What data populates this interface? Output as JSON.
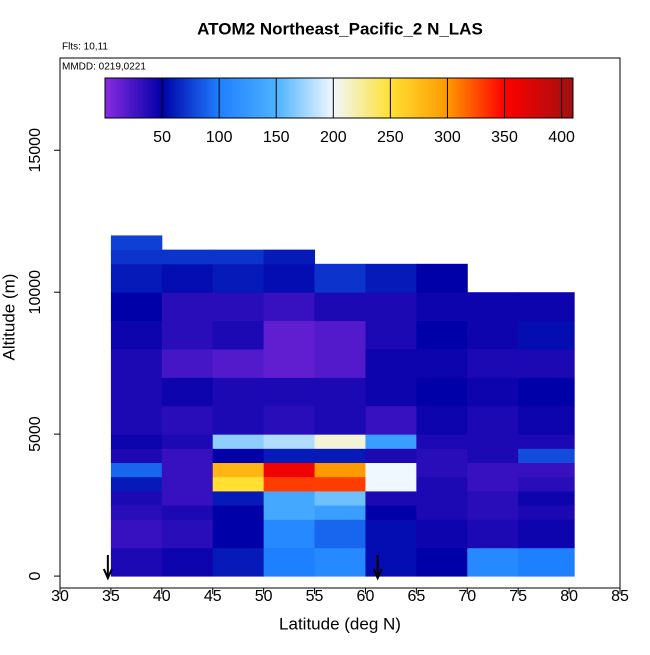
{
  "chart_data": {
    "type": "heatmap",
    "title": "ATOM2 Northeast_Pacific_2 N_LAS",
    "annotations": [
      "Flts: 10,11",
      "MMDD: 0219,0221"
    ],
    "x_label": "Latitude (deg N)",
    "y_label": "Altitude (m)",
    "xlim": [
      30,
      85
    ],
    "xticks": [
      30,
      35,
      40,
      45,
      50,
      55,
      60,
      65,
      70,
      75,
      80,
      85
    ],
    "ylim": [
      -420,
      18250
    ],
    "yticks": [
      0,
      5000,
      10000,
      15000
    ],
    "x_edges": [
      35,
      40,
      45,
      50,
      55,
      60,
      65,
      70,
      75,
      80.5
    ],
    "y_edges": [
      0,
      1000,
      2000,
      2500,
      3000,
      3500,
      4000,
      4500,
      5000,
      6000,
      7000,
      8000,
      9000,
      10000,
      11000,
      11500,
      12000
    ],
    "values": [
      [
        40,
        45,
        60,
        100,
        110,
        55,
        50,
        110,
        100
      ],
      [
        30,
        35,
        50,
        110,
        90,
        55,
        45,
        40,
        45
      ],
      [
        35,
        40,
        50,
        140,
        130,
        50,
        40,
        35,
        40
      ],
      [
        40,
        30,
        60,
        140,
        160,
        40,
        40,
        35,
        45
      ],
      [
        60,
        30,
        250,
        330,
        330,
        200,
        40,
        30,
        35
      ],
      [
        90,
        30,
        280,
        360,
        300,
        200,
        35,
        30,
        30
      ],
      [
        40,
        30,
        50,
        60,
        60,
        40,
        35,
        40,
        80
      ],
      [
        45,
        40,
        170,
        180,
        210,
        130,
        40,
        40,
        40
      ],
      [
        40,
        35,
        40,
        35,
        40,
        30,
        45,
        40,
        45
      ],
      [
        40,
        45,
        40,
        40,
        40,
        45,
        50,
        45,
        50
      ],
      [
        40,
        25,
        20,
        15,
        20,
        45,
        45,
        40,
        40
      ],
      [
        45,
        35,
        40,
        15,
        20,
        40,
        50,
        45,
        55
      ],
      [
        50,
        35,
        35,
        30,
        40,
        40,
        45,
        45,
        45
      ],
      [
        60,
        55,
        60,
        55,
        70,
        60,
        50,
        null,
        null
      ],
      [
        70,
        70,
        70,
        60,
        null,
        null,
        null,
        null,
        null
      ],
      [
        75,
        null,
        null,
        null,
        null,
        null,
        null,
        null,
        null
      ]
    ],
    "colorscale": [
      [
        0,
        "#8a2be2"
      ],
      [
        50,
        "#0000a8"
      ],
      [
        100,
        "#1e7fff"
      ],
      [
        150,
        "#4db2ff"
      ],
      [
        200,
        "#f0f8ff"
      ],
      [
        250,
        "#ffe033"
      ],
      [
        300,
        "#ff9900"
      ],
      [
        350,
        "#ff0000"
      ],
      [
        410,
        "#a01010"
      ]
    ],
    "clim": [
      0,
      410
    ],
    "cticks": [
      50,
      100,
      150,
      200,
      250,
      300,
      350,
      400
    ],
    "arrows": [
      34.7,
      61.2
    ]
  }
}
